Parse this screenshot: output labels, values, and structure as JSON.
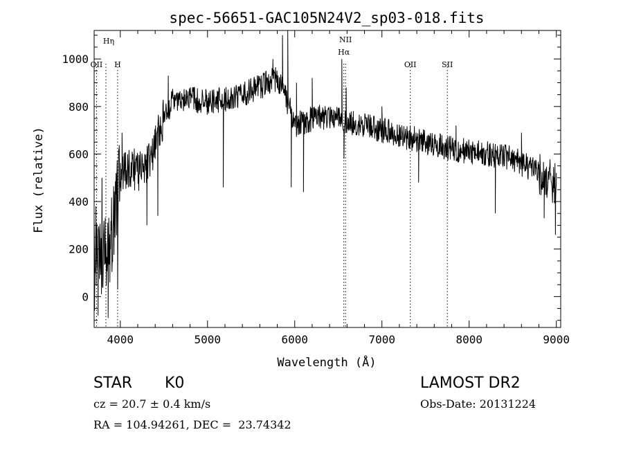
{
  "chart_data": {
    "type": "line",
    "title": "spec-56651-GAC105N24V2_sp03-018.fits",
    "xlabel": "Wavelength (Å)",
    "ylabel": "Flux (relative)",
    "xlim": [
      3700,
      9050
    ],
    "ylim": [
      -130,
      1120
    ],
    "x_ticks": [
      4000,
      5000,
      6000,
      7000,
      8000,
      9000
    ],
    "y_ticks": [
      0,
      200,
      400,
      600,
      800,
      1000
    ],
    "x_tick_labels": [
      "4000",
      "5000",
      "6000",
      "7000",
      "8000",
      "9000"
    ],
    "y_tick_labels": [
      "0",
      "200",
      "400",
      "600",
      "800",
      "1000"
    ],
    "grid": false,
    "line_color": "#000000",
    "continuum": [
      [
        3700,
        200
      ],
      [
        3800,
        150
      ],
      [
        3900,
        250
      ],
      [
        4000,
        500
      ],
      [
        4100,
        540
      ],
      [
        4200,
        530
      ],
      [
        4300,
        550
      ],
      [
        4400,
        640
      ],
      [
        4500,
        760
      ],
      [
        4600,
        820
      ],
      [
        4800,
        830
      ],
      [
        5000,
        820
      ],
      [
        5200,
        830
      ],
      [
        5400,
        850
      ],
      [
        5600,
        880
      ],
      [
        5800,
        920
      ],
      [
        5900,
        840
      ],
      [
        6000,
        720
      ],
      [
        6200,
        750
      ],
      [
        6400,
        760
      ],
      [
        6600,
        730
      ],
      [
        6800,
        720
      ],
      [
        7000,
        700
      ],
      [
        7200,
        680
      ],
      [
        7500,
        650
      ],
      [
        7800,
        620
      ],
      [
        8200,
        600
      ],
      [
        8500,
        580
      ],
      [
        8800,
        520
      ],
      [
        9000,
        470
      ]
    ],
    "features": [
      [
        3705,
        -60
      ],
      [
        3720,
        380
      ],
      [
        3745,
        -80
      ],
      [
        3790,
        500
      ],
      [
        3830,
        140
      ],
      [
        3860,
        -90
      ],
      [
        3880,
        60
      ],
      [
        3930,
        410
      ],
      [
        3970,
        30
      ],
      [
        3985,
        600
      ],
      [
        4020,
        690
      ],
      [
        4305,
        300
      ],
      [
        4330,
        620
      ],
      [
        4430,
        340
      ],
      [
        4550,
        930
      ],
      [
        5180,
        460
      ],
      [
        5200,
        860
      ],
      [
        5750,
        1000
      ],
      [
        5860,
        1100
      ],
      [
        5890,
        880
      ],
      [
        5920,
        1120
      ],
      [
        5960,
        460
      ],
      [
        6020,
        900
      ],
      [
        6100,
        440
      ],
      [
        6200,
        920
      ],
      [
        6540,
        1000
      ],
      [
        6565,
        580
      ],
      [
        6590,
        880
      ],
      [
        7000,
        800
      ],
      [
        7420,
        480
      ],
      [
        7450,
        690
      ],
      [
        7850,
        720
      ],
      [
        8300,
        350
      ],
      [
        8600,
        690
      ],
      [
        8860,
        330
      ],
      [
        8975,
        500
      ],
      [
        8990,
        260
      ],
      [
        9000,
        520
      ]
    ],
    "lines": [
      {
        "name": "OII",
        "x": 3727
      },
      {
        "name": "Hη",
        "x": 3835
      },
      {
        "name": "H",
        "x": 3969
      },
      {
        "name": "NII",
        "x": 6583
      },
      {
        "name": "Hα",
        "x": 6563
      },
      {
        "name": "OII",
        "x": 7325
      },
      {
        "name": "SII",
        "x": 7750
      }
    ]
  },
  "info": {
    "object_type": "STAR",
    "subclass": "K0",
    "survey": "LAMOST DR2",
    "redshift": "cz = 20.7 ± 0.4 km/s",
    "obs_date": "Obs-Date: 20131224",
    "coords": "RA = 104.94261, DEC =  23.74342"
  }
}
